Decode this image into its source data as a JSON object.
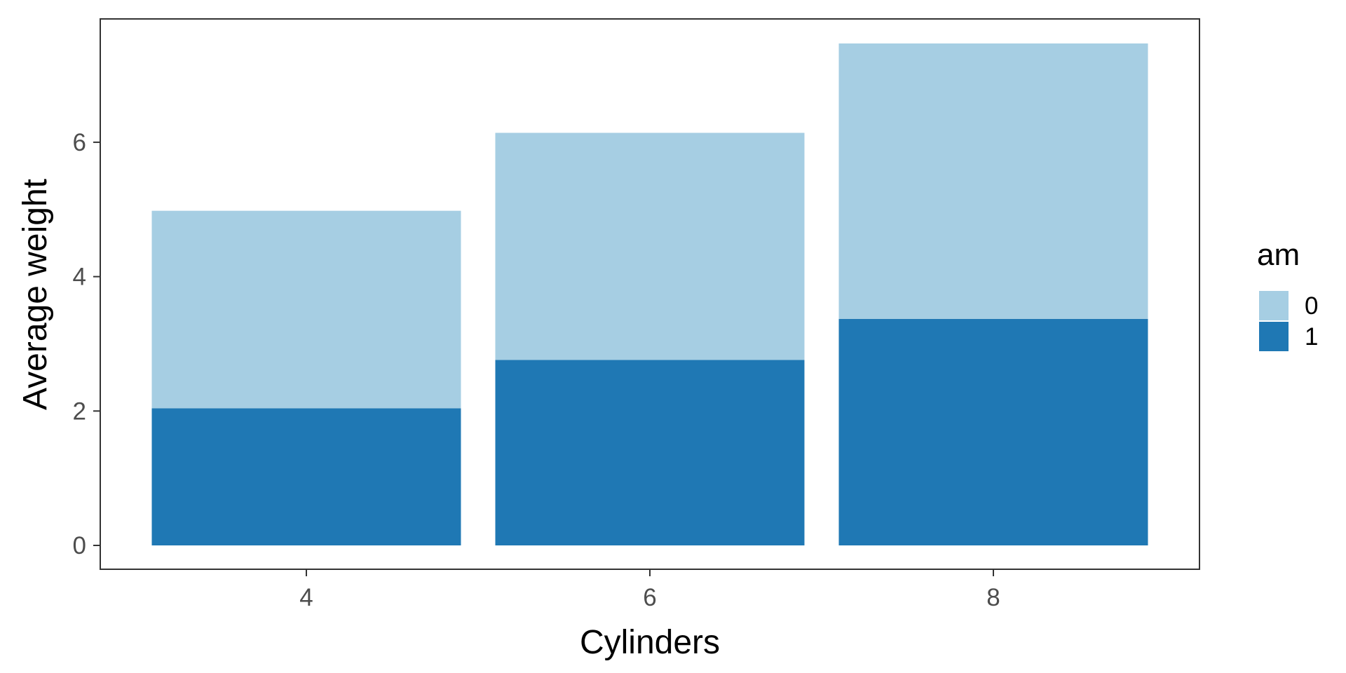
{
  "chart_data": {
    "type": "bar",
    "stacked": true,
    "categories": [
      "4",
      "6",
      "8"
    ],
    "series": [
      {
        "name": "1",
        "color": "#1f78b4",
        "values": [
          2.04,
          2.76,
          3.37
        ]
      },
      {
        "name": "0",
        "color": "#a6cee3",
        "values": [
          2.94,
          3.38,
          4.1
        ]
      }
    ],
    "x_tick_labels": [
      "4",
      "6",
      "8"
    ],
    "y_ticks": [
      0,
      2,
      4,
      6
    ],
    "y_tick_labels": [
      "0",
      "2",
      "4",
      "6"
    ],
    "ylim": [
      0,
      7.47
    ],
    "xlabel": "Cylinders",
    "ylabel": "Average weight",
    "grid": false,
    "legend": {
      "title": "am",
      "position": "right",
      "entries": [
        {
          "label": "0",
          "color": "#a6cee3"
        },
        {
          "label": "1",
          "color": "#1f78b4"
        }
      ]
    }
  }
}
